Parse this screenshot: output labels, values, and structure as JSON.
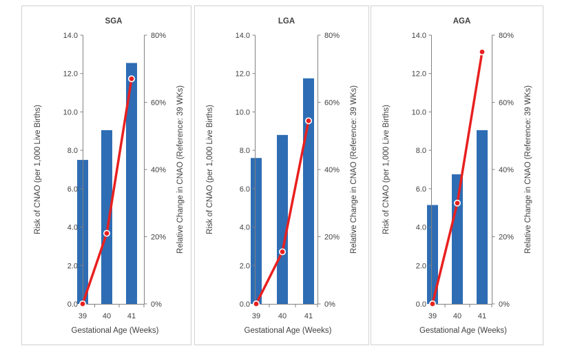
{
  "chart_data": [
    {
      "type": "bar",
      "title": "SGA",
      "categories": [
        "39",
        "40",
        "41"
      ],
      "xlabel": "Gestational Age (Weeks)",
      "ylabel": "Risk of CNAO (per 1,000 Live Births)",
      "y2label": "Relative Change in CNAO (Reference: 39 WKs)",
      "ylim": [
        0,
        14
      ],
      "y2lim": [
        0,
        80
      ],
      "yticks": [
        "0.0",
        "2.0",
        "4.0",
        "6.0",
        "8.0",
        "10.0",
        "12.0",
        "14.0"
      ],
      "y2ticks": [
        "0%",
        "20%",
        "40%",
        "60%",
        "80%"
      ],
      "series": [
        {
          "name": "Risk of CNAO (per 1,000 Live Births)",
          "kind": "bar",
          "axis": "left",
          "values": [
            7.5,
            9.05,
            12.55
          ]
        },
        {
          "name": "Relative Change in CNAO (Reference: 39 WKs)",
          "kind": "line",
          "axis": "right",
          "values": [
            0,
            21,
            67
          ]
        }
      ]
    },
    {
      "type": "bar",
      "title": "LGA",
      "categories": [
        "39",
        "40",
        "41"
      ],
      "xlabel": "Gestational Age (Weeks)",
      "ylabel": "Risk of CNAO (per 1,000 Live Births)",
      "y2label": "Relative Change in CNAO (Reference: 39 WKs)",
      "ylim": [
        0,
        14
      ],
      "y2lim": [
        0,
        80
      ],
      "yticks": [
        "0.0",
        "2.0",
        "4.0",
        "6.0",
        "8.0",
        "10.0",
        "12.0",
        "14.0"
      ],
      "y2ticks": [
        "0%",
        "20%",
        "40%",
        "60%",
        "80%"
      ],
      "series": [
        {
          "name": "Risk of CNAO (per 1,000 Live Births)",
          "kind": "bar",
          "axis": "left",
          "values": [
            7.6,
            8.8,
            11.75
          ]
        },
        {
          "name": "Relative Change in CNAO (Reference: 39 WKs)",
          "kind": "line",
          "axis": "right",
          "values": [
            0,
            15.5,
            54.5
          ]
        }
      ]
    },
    {
      "type": "bar",
      "title": "AGA",
      "categories": [
        "39",
        "40",
        "41"
      ],
      "xlabel": "Gestational Age (Weeks)",
      "ylabel": "Risk of CNAO (per 1,000 Live Births)",
      "y2label": "Relative Change in CNAO (Reference: 39 WKs)",
      "ylim": [
        0,
        14
      ],
      "y2lim": [
        0,
        80
      ],
      "yticks": [
        "0.0",
        "2.0",
        "4.0",
        "6.0",
        "8.0",
        "10.0",
        "12.0",
        "14.0"
      ],
      "y2ticks": [
        "0%",
        "20%",
        "40%",
        "60%",
        "80%"
      ],
      "series": [
        {
          "name": "Risk of CNAO (per 1,000 Live Births)",
          "kind": "bar",
          "axis": "left",
          "values": [
            5.15,
            6.75,
            9.05
          ]
        },
        {
          "name": "Relative Change in CNAO (Reference: 39 WKs)",
          "kind": "line",
          "axis": "right",
          "values": [
            0,
            30,
            75
          ]
        }
      ]
    }
  ],
  "colors": {
    "bar": "#2e6db4",
    "line": "#e8201f"
  }
}
